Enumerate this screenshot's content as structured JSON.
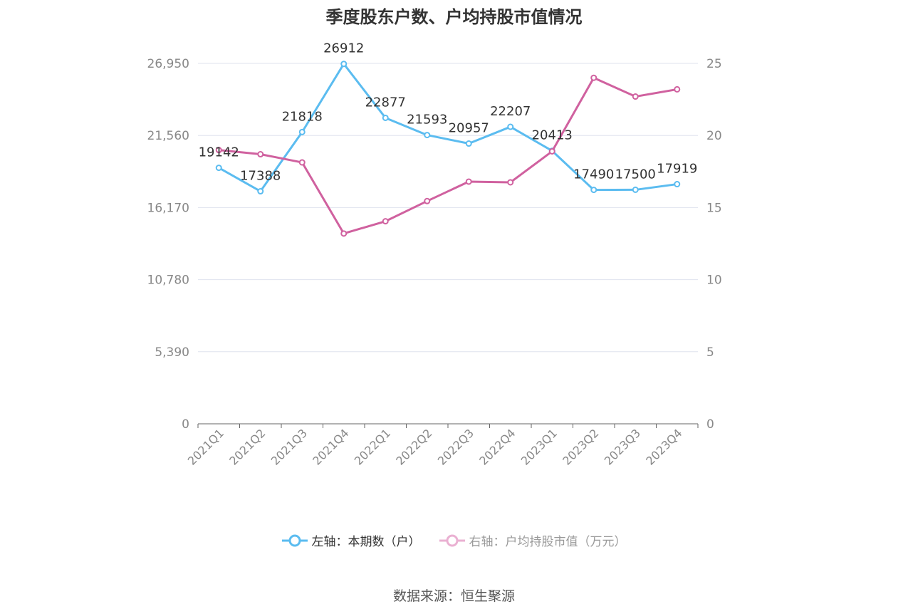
{
  "chart_data": {
    "type": "line",
    "title": "季度股东户数、户均持股市值情况",
    "categories": [
      "2021Q1",
      "2021Q2",
      "2021Q3",
      "2021Q4",
      "2022Q1",
      "2022Q2",
      "2022Q3",
      "2022Q4",
      "2023Q1",
      "2023Q2",
      "2023Q3",
      "2023Q4"
    ],
    "left_axis": {
      "ticks": [
        "0",
        "5,390",
        "10,780",
        "16,170",
        "21,560",
        "26,950"
      ],
      "ylim": [
        0,
        26950
      ]
    },
    "right_axis": {
      "ticks": [
        "0",
        "5",
        "10",
        "15",
        "20",
        "25"
      ],
      "ylim": [
        0,
        25
      ]
    },
    "series": [
      {
        "name": "左轴：本期数（户）",
        "axis": "left",
        "color": "#5bbcf0",
        "values": [
          19142,
          17388,
          21818,
          26912,
          22877,
          21593,
          20957,
          22207,
          20413,
          17490,
          17500,
          17919
        ],
        "labels": [
          "19142",
          "17388",
          "21818",
          "26912",
          "22877",
          "21593",
          "20957",
          "22207",
          "20413",
          "17490",
          "17500",
          "17919"
        ]
      },
      {
        "name": "右轴：户均持股市值（万元）",
        "axis": "right",
        "color": "#d0619f",
        "values": [
          18.99,
          18.7,
          18.13,
          13.2,
          14.05,
          15.45,
          16.8,
          16.75,
          18.9,
          24.0,
          22.7,
          23.2
        ]
      }
    ],
    "grid": true,
    "legend_position": "bottom"
  },
  "legend": {
    "left_series": "左轴：本期数（户）",
    "right_series": "右轴：户均持股市值（万元）"
  },
  "source": "数据来源：恒生聚源"
}
